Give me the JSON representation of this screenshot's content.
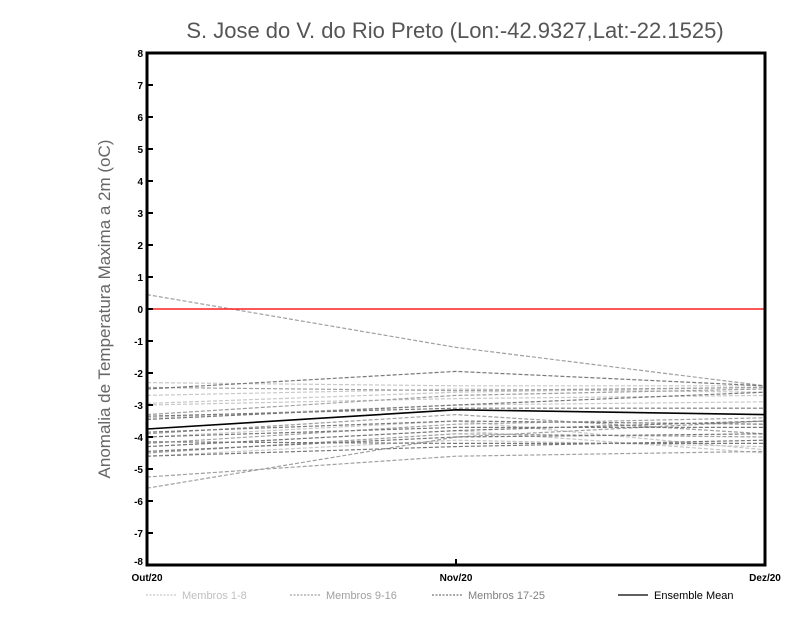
{
  "chart_data": {
    "type": "line",
    "title": "S. Jose do V. do Rio Preto (Lon:-42.9327,Lat:-22.1525)",
    "xlabel": "",
    "ylabel": "Anomalia de Temperatura Maxima a 2m (oC)",
    "categories": [
      "Out/20",
      "Nov/20",
      "Dez/20"
    ],
    "ylim": [
      -8,
      8
    ],
    "yticks": [
      -8,
      -7,
      -6,
      -5,
      -4,
      -3,
      -2,
      -1,
      0,
      1,
      2,
      3,
      4,
      5,
      6,
      7,
      8
    ],
    "reference_line": {
      "value": 0,
      "color": "#ff2020"
    },
    "groups": [
      {
        "name": "Membros 1-8",
        "color": "#c8c8c8",
        "dashed": true,
        "series": [
          [
            -2.3,
            -2.4,
            -2.4
          ],
          [
            -2.7,
            -2.5,
            -2.6
          ],
          [
            -2.95,
            -2.6,
            -2.45
          ],
          [
            -3.4,
            -3.0,
            -2.9
          ],
          [
            -4.0,
            -3.5,
            -4.4
          ],
          [
            -4.3,
            -3.8,
            -4.5
          ],
          [
            -3.0,
            -2.8,
            -2.7
          ],
          [
            -4.6,
            -4.1,
            -4.3
          ]
        ]
      },
      {
        "name": "Membros 9-16",
        "color": "#a0a0a0",
        "dashed": true,
        "series": [
          [
            0.45,
            -1.2,
            -2.4
          ],
          [
            -5.6,
            -4.0,
            -3.5
          ],
          [
            -5.25,
            -4.6,
            -4.45
          ],
          [
            -4.2,
            -3.6,
            -3.4
          ],
          [
            -3.3,
            -2.7,
            -2.5
          ],
          [
            -4.5,
            -3.9,
            -4.0
          ],
          [
            -3.9,
            -3.3,
            -3.9
          ],
          [
            -2.45,
            -2.55,
            -2.45
          ]
        ]
      },
      {
        "name": "Membros 17-25",
        "color": "#787878",
        "dashed": true,
        "series": [
          [
            -2.5,
            -1.95,
            -2.4
          ],
          [
            -3.35,
            -3.1,
            -3.1
          ],
          [
            -3.45,
            -3.0,
            -2.6
          ],
          [
            -4.0,
            -3.7,
            -3.7
          ],
          [
            -4.15,
            -4.2,
            -4.2
          ],
          [
            -4.45,
            -4.0,
            -3.9
          ],
          [
            -4.6,
            -4.3,
            -4.1
          ],
          [
            -3.85,
            -3.5,
            -3.6
          ],
          [
            -4.3,
            -3.8,
            -3.5
          ]
        ]
      },
      {
        "name": "Ensemble Mean",
        "color": "#000000",
        "dashed": false,
        "series": [
          [
            -3.75,
            -3.15,
            -3.3
          ]
        ]
      }
    ],
    "legend_position": "bottom",
    "grid": false
  }
}
